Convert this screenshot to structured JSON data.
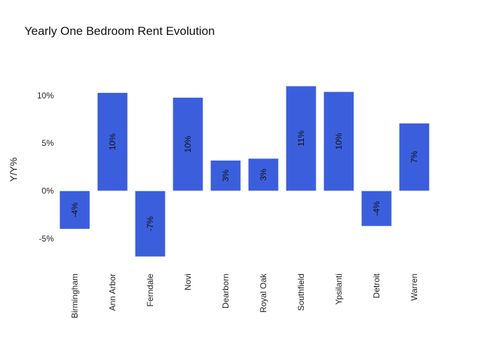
{
  "chart_data": {
    "type": "bar",
    "title": "Yearly One Bedroom Rent Evolution",
    "xlabel": "",
    "ylabel": "Y/Y%",
    "categories": [
      "Birmingham",
      "Ann Arbor",
      "Ferndale",
      "Novi",
      "Dearborn",
      "Royal Oak",
      "Southfield",
      "Ypsilanti",
      "Detroit",
      "Warren"
    ],
    "values": [
      -4,
      10.3,
      -6.9,
      9.8,
      3.2,
      3.4,
      11,
      10.4,
      -3.7,
      7.1
    ],
    "data_labels": [
      "-4%",
      "10%",
      "-7%",
      "10%",
      "3%",
      "3%",
      "11%",
      "10%",
      "-4%",
      "7%"
    ],
    "yticks": [
      {
        "value": 10,
        "label": "10%"
      },
      {
        "value": 5,
        "label": "5%"
      },
      {
        "value": 0,
        "label": "0%"
      },
      {
        "value": -5,
        "label": "-5%"
      }
    ],
    "ylim": [
      -7.8,
      13.8
    ],
    "grid": false,
    "legend": "none",
    "bar_color": "#3b5fdc"
  }
}
